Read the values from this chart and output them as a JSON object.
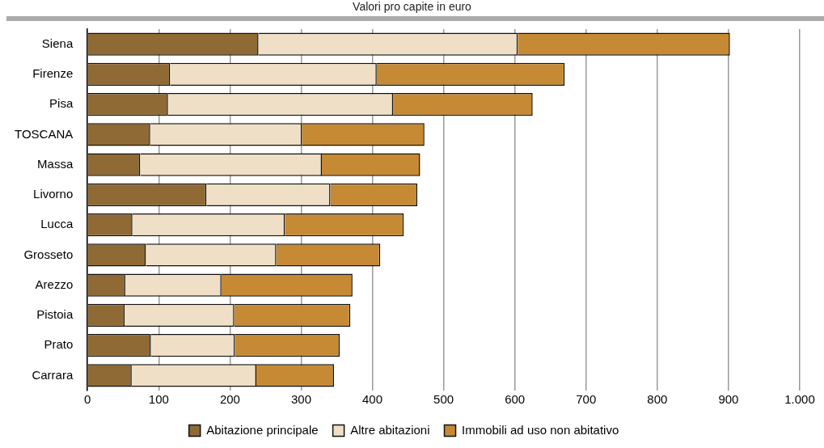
{
  "chart_data": {
    "type": "bar",
    "orientation": "horizontal",
    "stacked": true,
    "subtitle": "Valori pro capite in euro",
    "categories": [
      "Siena",
      "Firenze",
      "Pisa",
      "TOSCANA",
      "Massa",
      "Livorno",
      "Lucca",
      "Grosseto",
      "Arezzo",
      "Pistoia",
      "Prato",
      "Carrara"
    ],
    "series": [
      {
        "name": "Abitazione principale",
        "color": "#8f6a35",
        "values": [
          240,
          116,
          113,
          88,
          74,
          167,
          63,
          82,
          53,
          52,
          89,
          62
        ]
      },
      {
        "name": "Altre abitazioni",
        "color": "#efdfc6",
        "values": [
          364,
          290,
          316,
          213,
          255,
          174,
          214,
          183,
          135,
          154,
          118,
          175
        ]
      },
      {
        "name": "Immobili ad uso non abitativo",
        "color": "#c68a35",
        "values": [
          298,
          264,
          196,
          172,
          138,
          122,
          167,
          146,
          184,
          163,
          147,
          109
        ]
      }
    ],
    "xlim": [
      0,
      1000
    ],
    "xticks": [
      0,
      100,
      200,
      300,
      400,
      500,
      600,
      700,
      800,
      900,
      {
        "value": 1000,
        "label": "1.000"
      }
    ],
    "grid": "x",
    "legend": "bottom"
  }
}
